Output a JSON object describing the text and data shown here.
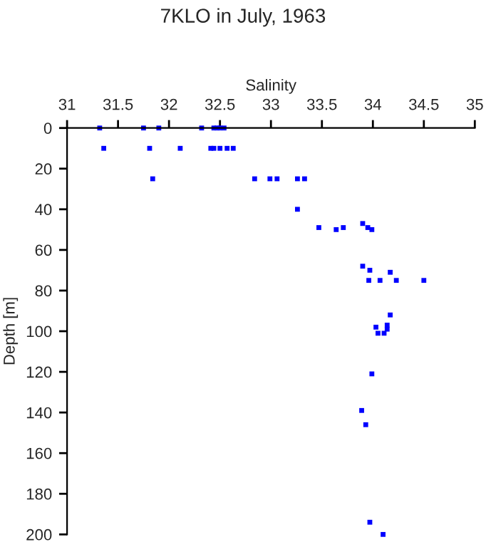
{
  "chart_data": {
    "type": "scatter",
    "title": "7KLO in July, 1963",
    "xlabel": "Salinity",
    "ylabel": "Depth [m]",
    "x": [
      31.32,
      31.75,
      31.9,
      32.32,
      32.44,
      32.47,
      32.5,
      32.54,
      31.36,
      31.81,
      32.11,
      32.41,
      32.44,
      32.5,
      32.57,
      32.63,
      31.84,
      32.84,
      32.99,
      33.06,
      33.26,
      33.33,
      33.26,
      33.47,
      33.71,
      33.64,
      33.99,
      33.9,
      33.95,
      33.9,
      33.97,
      34.17,
      34.07,
      33.96,
      34.23,
      34.5,
      34.17,
      34.03,
      34.05,
      34.11,
      34.14,
      34.14,
      33.99,
      33.89,
      33.93,
      33.97,
      34.1
    ],
    "series": [
      {
        "color": "#0000ff",
        "values": [
          0,
          0,
          0,
          0,
          0,
          0,
          0,
          0,
          10,
          10,
          10,
          10,
          10,
          10,
          10,
          10,
          25,
          25,
          25,
          25,
          25,
          25,
          40,
          49,
          49,
          50,
          50,
          47,
          49,
          68,
          70,
          71,
          75,
          75,
          75,
          75,
          92,
          98,
          101,
          101,
          99,
          97,
          121,
          139,
          146,
          194,
          200
        ]
      }
    ],
    "xlim": [
      31,
      35
    ],
    "xticks": [
      31,
      31.5,
      32,
      32.5,
      33,
      33.5,
      34,
      34.5,
      35
    ],
    "ylim": [
      200,
      0
    ],
    "yticks": [
      0,
      20,
      40,
      60,
      80,
      100,
      120,
      140,
      160,
      180,
      200
    ],
    "marker": "square",
    "grid": false
  }
}
